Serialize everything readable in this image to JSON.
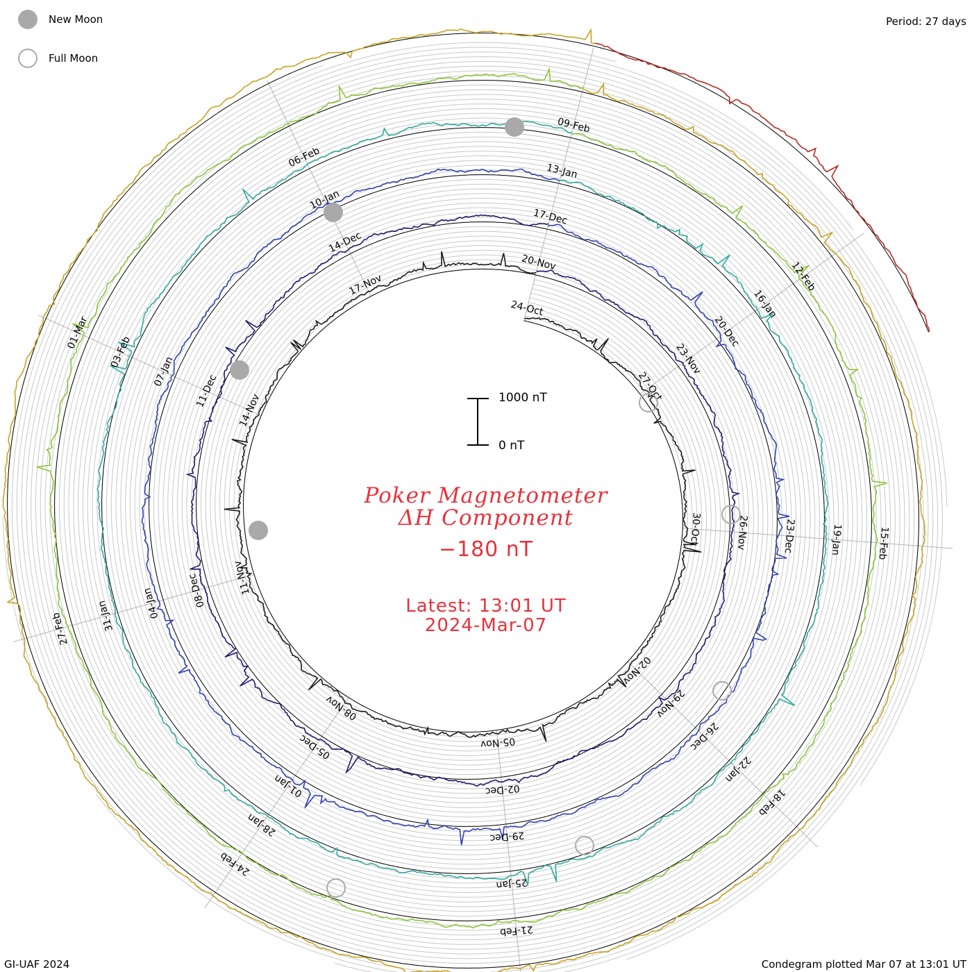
{
  "header": {
    "period": "Period: 27 days"
  },
  "legend": {
    "new_moon": "New Moon",
    "full_moon": "Full Moon",
    "moon_color": "#a9a9a9"
  },
  "center": {
    "title_line1": "Poker Magnetometer",
    "title_line2": "ΔH Component",
    "current_value": "−180 nT",
    "latest_time": "Latest: 13:01 UT",
    "latest_date": "2024-Mar-07",
    "text_color": "#e8323c"
  },
  "scale_bar": {
    "top_label": "1000 nT",
    "bottom_label": "0 nT"
  },
  "footer": {
    "credit": "GI-UAF 2024",
    "plotted": "Condegram plotted Mar 07 at 13:01 UT"
  },
  "chart_data": {
    "type": "condegram-spiral",
    "period_days": 27,
    "turns": [
      {
        "color": "#1a1a1a",
        "labels": [
          "24-Oct",
          "27-Oct",
          "30-Oct"
        ]
      },
      {
        "color": "#1f1a6e",
        "labels": [
          "02-Nov",
          "05-Nov",
          "08-Nov",
          "11-Nov",
          "14-Nov",
          "17-Nov"
        ]
      },
      {
        "color": "#2f3fb0",
        "labels": [
          "20-Nov",
          "23-Nov",
          "26-Nov",
          "29-Nov",
          "02-Dec",
          "05-Dec",
          "08-Dec",
          "11-Dec",
          "14-Dec"
        ]
      },
      {
        "color": "#2fa8a0",
        "labels": [
          "17-Dec",
          "20-Dec",
          "23-Dec",
          "26-Dec",
          "29-Dec",
          "01-Jan",
          "04-Jan",
          "07-Jan",
          "10-Jan"
        ]
      },
      {
        "color": "#8cc43a",
        "labels": [
          "13-Jan",
          "16-Jan",
          "19-Jan",
          "22-Jan",
          "25-Jan",
          "28-Jan",
          "31-Jan",
          "03-Feb",
          "06-Feb"
        ]
      },
      {
        "color": "#c9a21e",
        "labels": [
          "09-Feb",
          "12-Feb",
          "15-Feb",
          "18-Feb",
          "21-Feb",
          "24-Feb",
          "27-Feb",
          "01-Mar"
        ]
      },
      {
        "color": "#b8281e",
        "labels": []
      }
    ],
    "new_moon_dates": [
      "13-Nov",
      "13-Dec",
      "11-Jan",
      "09-Feb"
    ],
    "full_moon_dates": [
      "28-Oct",
      "27-Nov",
      "27-Dec",
      "25-Jan",
      "24-Feb"
    ],
    "scale_nT": [
      0,
      1000
    ],
    "current_value_nT": -180
  }
}
